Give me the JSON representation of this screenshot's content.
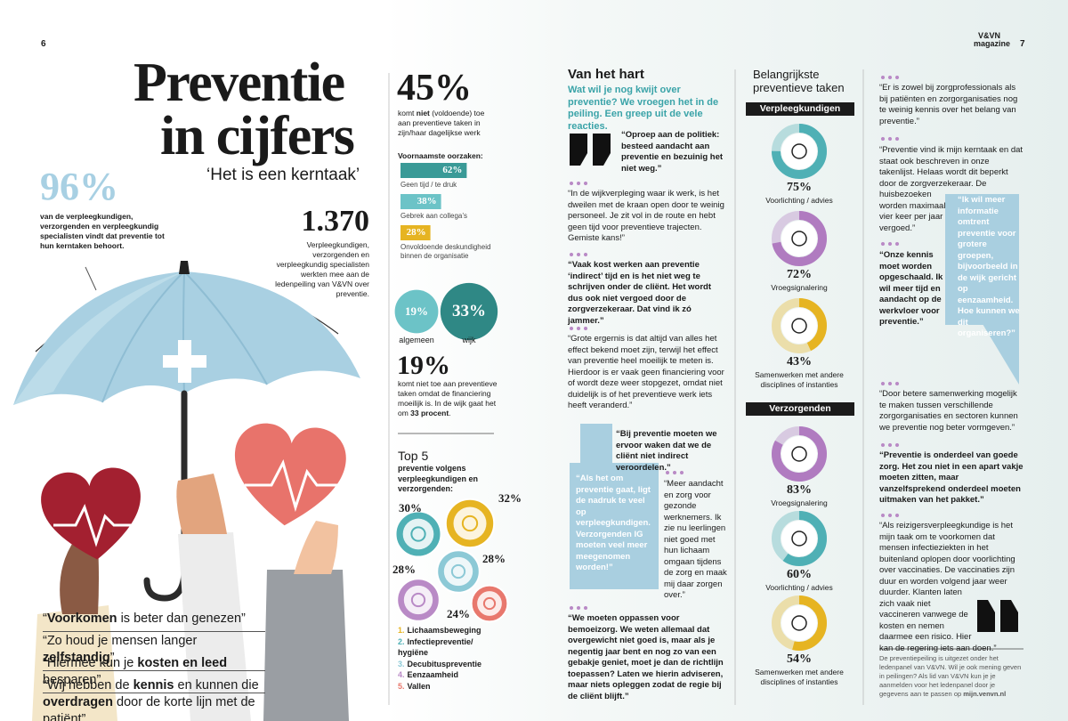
{
  "header": {
    "page_left": "6",
    "page_right": "7",
    "masthead": [
      "V&VN",
      "magazine"
    ]
  },
  "intro": {
    "title": [
      "Preventie",
      "in cijfers"
    ],
    "subtitle": "‘Het is een kerntaak’",
    "stat_96": {
      "label": "96%",
      "text": "van de verpleegkundigen, verzorgenden en verpleegkundig specialisten vindt dat preventie tot hun kerntaken behoort."
    },
    "stat_1370": {
      "label": "1.370",
      "text": "Verpleegkundigen, verzorgenden en verpleegkundig specialisten werkten mee aan de ledenpeiling van V&VN over preventie."
    },
    "slogans": [
      [
        "“",
        "Voorkomen",
        " is beter dan genezen”"
      ],
      [
        "“Zo houd je mensen langer ",
        "zelfstandig",
        "”"
      ],
      [
        "“Hiermee kun je ",
        "kosten en leed",
        " besparen”"
      ],
      [
        "“Wij hebben de ",
        "kennis",
        " en kunnen die ",
        "overdragen",
        " door de korte lijn met de patiënt”"
      ]
    ]
  },
  "figures": {
    "stat_45": {
      "label": "45%",
      "text": [
        "komt ",
        "niet",
        " (voldoende) toe aan preventieve taken in zijn/haar dagelijkse werk"
      ]
    },
    "causes_title": "Voornaamste oorzaken:",
    "causes": [
      {
        "value": 62,
        "label": "62%",
        "text": "Geen tijd / te druk",
        "color": "#3a9a97"
      },
      {
        "value": 38,
        "label": "38%",
        "text": "Gebrek aan collega’s",
        "color": "#6cc3c7"
      },
      {
        "value": 28,
        "label": "28%",
        "text": "Onvoldoende deskundigheid binnen de organisatie",
        "color": "#e6b422"
      }
    ],
    "split": [
      {
        "value": 19,
        "label": "19%",
        "text": "algemeen",
        "color": "#6cc3c7"
      },
      {
        "value": 33,
        "label": "33%",
        "text": "wijk",
        "color": "#2f8885"
      }
    ],
    "stat_19": {
      "label": "19%",
      "text": [
        "komt niet toe aan preventieve taken omdat de financiering moeilijk is. In de wijk gaat het om ",
        "33 procent",
        "."
      ]
    },
    "top5": {
      "title": "Top 5",
      "subtitle": "preventie volgens verpleegkundigen en verzorgenden:",
      "items": [
        {
          "rank": "1.",
          "name": "Lichaamsbeweging",
          "value": 32,
          "label": "32%",
          "color": "#e6b422"
        },
        {
          "rank": "2.",
          "name": "Infectiepreventie/ hygiëne",
          "value": 30,
          "label": "30%",
          "color": "#4fb0b5"
        },
        {
          "rank": "3.",
          "name": "Decubituspreventie",
          "value": 28,
          "label": "28%",
          "color": "#8cc9d6"
        },
        {
          "rank": "4.",
          "name": "Eenzaamheid",
          "value": 28,
          "label": "28%",
          "color": "#b98ac6"
        },
        {
          "rank": "5.",
          "name": "Vallen",
          "value": 24,
          "label": "24%",
          "color": "#e8786d"
        }
      ]
    }
  },
  "van_het_hart": {
    "title": "Van het hart",
    "intro": "Wat wil je nog kwijt over preventie? We vroegen het in de peiling. Een greep uit de vele reacties.",
    "lead_quote": "“Oproep aan de politiek: besteed aandacht aan preventie en bezuinig het niet weg.”",
    "quotes": [
      "“In de wijkverpleging waar ik werk, is het dweilen met de kraan open door te weinig personeel. Je zit vol in de route en hebt geen tijd voor preventieve trajecten. Gemiste kans!”",
      "“Vaak kost werken aan preventie ‘indirect’ tijd en is het niet weg te schrijven onder de cliënt. Het wordt dus ook niet vergoed door de zorgverzekeraar. Dat vind ik zó jammer.”",
      "“Grote ergernis is dat altijd van alles het effect bekend moet zijn, terwijl het effect van preventie heel moeilijk te meten is. Hierdoor is er vaak geen financiering voor of wordt deze weer stopgezet, omdat niet duidelijk is of het preventieve werk iets heeft veranderd.”"
    ],
    "bubble_quote": "“Bij preventie moeten we ervoor waken dat we de cliënt niet indirect veroordelen.”",
    "callout": "“Als het om preventie gaat, ligt de nadruk te veel op verpleegkundigen. Verzorgenden IG moeten veel meer meegenomen worden!”",
    "side_quote": "“Meer aandacht en zorg voor gezonde werknemers. Ik zie nu leerlingen niet goed met hun lichaam omgaan tijdens de zorg en maak mij daar zorgen over.”",
    "closing_quote": "“We moeten oppassen voor bemoeizorg. We weten allemaal dat overgewicht niet goed is, maar als je negentig jaar bent en nog zo van een gebakje geniet, moet je dan de richtlijn toepassen? Laten we hierin adviseren, maar niets opleggen zodat de regie bij de cliënt blijft.”"
  },
  "tasks": {
    "title": "Belangrijkste preventieve taken",
    "groups": [
      {
        "name": "Verpleegkundigen",
        "items": [
          {
            "value": 75,
            "label": "75%",
            "text": "Voorlichting / advies",
            "color": "#4fb0b5"
          },
          {
            "value": 72,
            "label": "72%",
            "text": "Vroegsignalering",
            "color": "#b07bc0"
          },
          {
            "value": 43,
            "label": "43%",
            "text": "Samenwerken met andere disciplines of instanties",
            "color": "#e6b422"
          }
        ]
      },
      {
        "name": "Verzorgenden",
        "items": [
          {
            "value": 83,
            "label": "83%",
            "text": "Vroegsignalering",
            "color": "#b07bc0"
          },
          {
            "value": 60,
            "label": "60%",
            "text": "Voorlichting / advies",
            "color": "#4fb0b5"
          },
          {
            "value": 54,
            "label": "54%",
            "text": "Samenwerken met andere disciplines of instanties",
            "color": "#e6b422"
          }
        ]
      }
    ]
  },
  "reactions": {
    "r1": "“Er is zowel bij zorgprofessionals als bij patiënten en zorgorganisaties nog te weinig kennis over het belang van preventie.”",
    "r2": "“Preventie vind ik mijn kerntaak en dat staat ook beschreven in onze takenlijst. Helaas wordt dit beperkt door de zorgverzekeraar. De huisbezoeken worden maximaal vier keer per jaar vergoed.”",
    "bubble": "“Ik wil meer informatie omtrent preventie voor grotere groepen, bijvoorbeeld in de wijk gericht op eenzaamheid. Hoe kunnen we dit organiseren?”",
    "r3": "“Onze kennis moet worden opgeschaald. Ik wil meer tijd en aandacht op de werkvloer voor preventie.”",
    "r4": "“Door betere samenwerking mogelijk te maken tussen verschillende zorgorganisaties en sectoren kunnen we preventie nog beter vormgeven.”",
    "r5": "“Preventie is onderdeel van goede zorg. Het zou niet in een apart vakje moeten zitten, maar vanzelfsprekend onderdeel moeten uitmaken van het pakket.”",
    "r6": "“Als reizigersverpleegkundige is het mijn taak om te voorkomen dat mensen infectieziekten in het buitenland oplopen door voorlichting over vaccinaties. De vaccinaties zijn duur en worden volgend jaar weer duurder. Klanten laten zich vaak niet vaccineren vanwege de kosten en nemen daarmee een risico. Hier kan de regering iets aan doen.”",
    "footer": [
      "De preventiepeiling is uitgezet onder het ledenpanel van V&VN. Wil je ook mening geven in peilingen? Als lid van V&VN kun je je aanmelden voor het ledenpanel door je gegevens aan te passen op ",
      "mijn.venvn.nl"
    ]
  }
}
